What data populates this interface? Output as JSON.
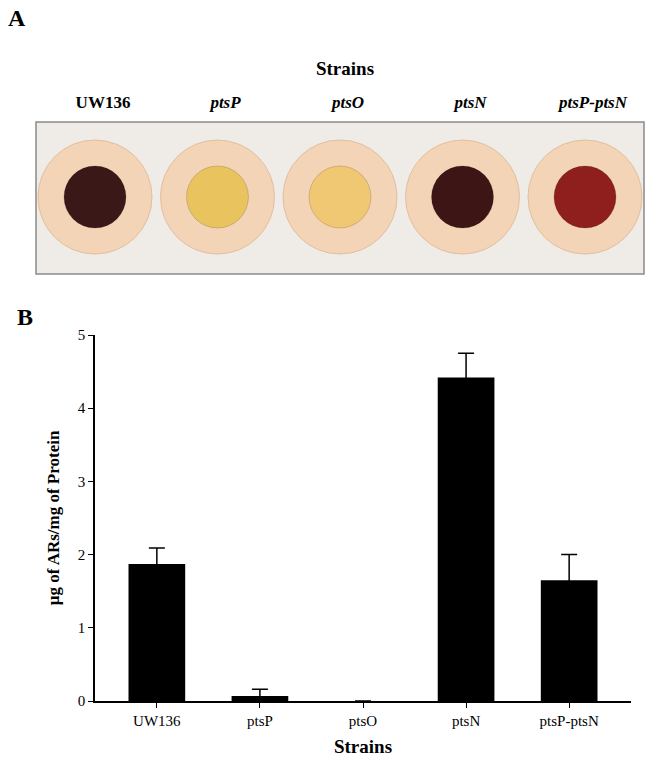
{
  "panel_a": {
    "label": "A",
    "title": "Strains",
    "strains": [
      "UW136",
      "ptsP",
      "ptsO",
      "ptsN",
      "ptsP-ptsN"
    ],
    "spot_colors": [
      "#3a1818",
      "#e9c35e",
      "#f0c873",
      "#3e1515",
      "#8e1f1c"
    ]
  },
  "chart_data": {
    "type": "bar",
    "annotations": [
      "B"
    ],
    "x_label": "Strains",
    "y_label": "µg of ARs/mg of Protein",
    "categories": [
      "UW136",
      "ptsP",
      "ptsO",
      "ptsN",
      "ptsP-ptsN"
    ],
    "values": [
      1.87,
      0.07,
      0,
      4.42,
      1.65
    ],
    "error": [
      0.22,
      0.09,
      0,
      0.33,
      0.35
    ],
    "color": "#000000",
    "ylim": [
      0,
      5
    ],
    "yticks": [
      0,
      1,
      2,
      3,
      4,
      5
    ],
    "grid": false
  }
}
